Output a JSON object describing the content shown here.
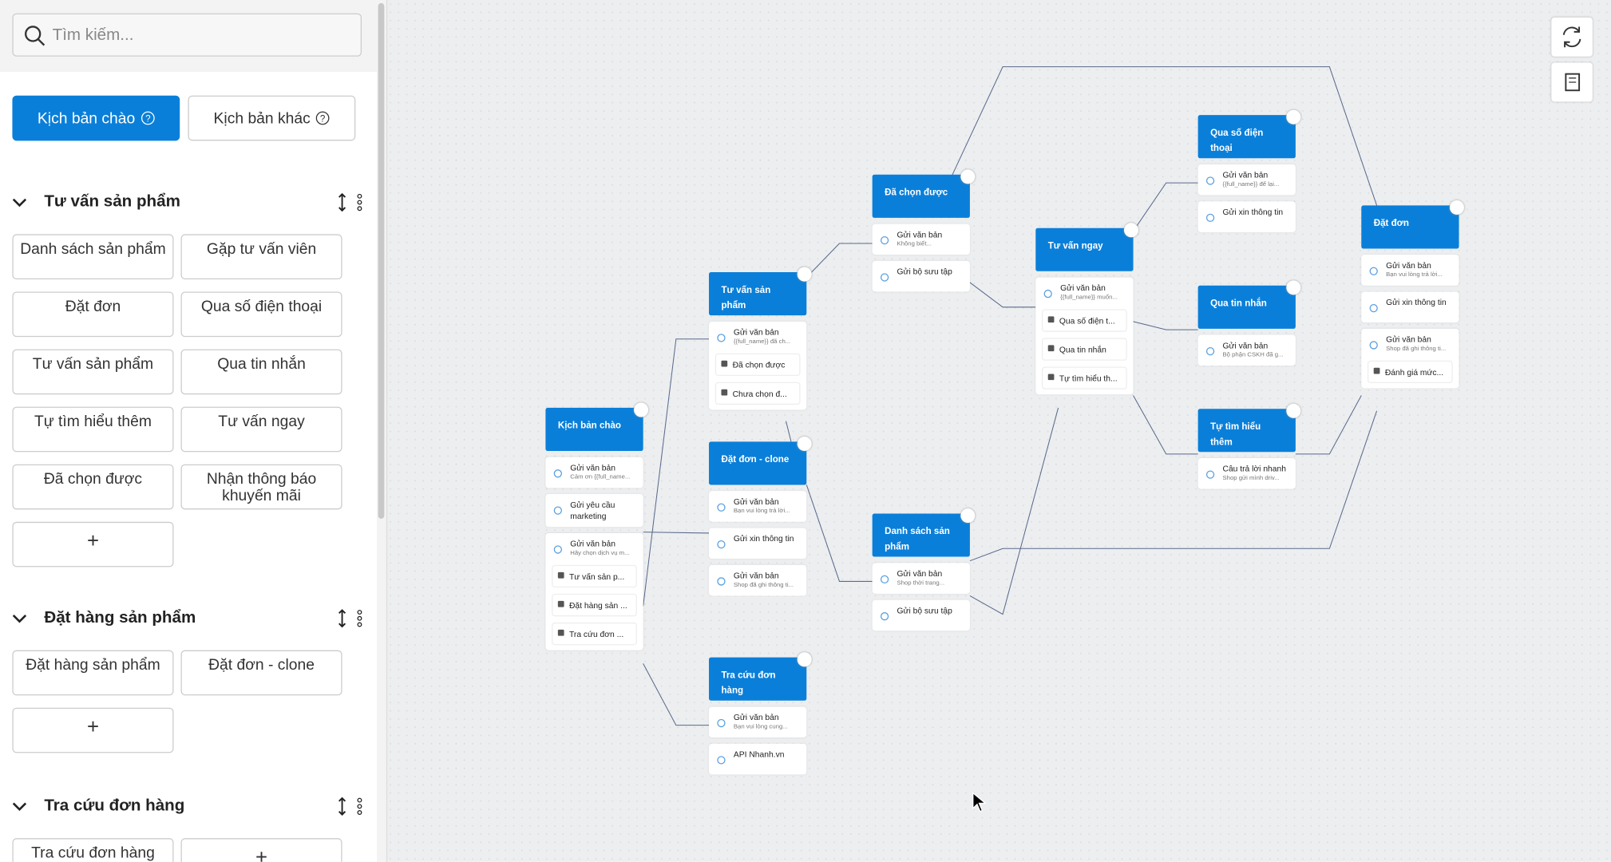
{
  "search": {
    "placeholder": "Tìm kiếm..."
  },
  "tabs": [
    "Kịch bản chào",
    "Kịch bản khác"
  ],
  "add_label": "+",
  "groups": [
    {
      "title": "Tư vấn sản phẩm",
      "items": [
        "Danh sách sản phẩm",
        "Gặp tư vấn viên",
        "Đặt đơn",
        "Qua số điện thoại",
        "Tư vấn sản phẩm",
        "Qua tin nhắn",
        "Tự tìm hiểu thêm",
        "Tư vấn ngay",
        "Đã chọn được",
        "Nhận thông báo khuyến mãi"
      ]
    },
    {
      "title": "Đặt hàng sản phẩm",
      "items": [
        "Đặt hàng sản phẩm",
        "Đặt đơn - clone"
      ]
    },
    {
      "title": "Tra cứu đơn hàng",
      "items": [
        "Tra cứu đơn hàng"
      ]
    }
  ],
  "nodes": [
    {
      "title": "Kịch bản chào",
      "items": [
        {
          "label": "Gửi văn bản",
          "sub": "Cảm ơn {{full_name..."
        },
        {
          "label": "Gửi yêu cầu marketing"
        },
        {
          "label": "Gửi văn bản",
          "sub": "Hãy chọn dịch vụ m...",
          "buttons": [
            "Tư vấn sản p...",
            "Đặt hàng sản ...",
            "Tra cứu đơn ..."
          ]
        }
      ]
    },
    {
      "title": "Tư vấn sản phẩm",
      "items": [
        {
          "label": "Gửi văn bản",
          "sub": "{{full_name}} đã ch...",
          "buttons": [
            "Đã chọn được",
            "Chưa chọn đ..."
          ]
        }
      ]
    },
    {
      "title": "Đặt đơn - clone",
      "items": [
        {
          "label": "Gửi văn bản",
          "sub": "Bạn vui lòng trả lời..."
        },
        {
          "label": "Gửi xin thông tin"
        },
        {
          "label": "Gửi văn bản",
          "sub": "Shop đã ghi thông ti..."
        }
      ]
    },
    {
      "title": "Tra cứu đơn hàng",
      "items": [
        {
          "label": "Gửi văn bản",
          "sub": "Bạn vui lòng cung..."
        },
        {
          "label": "API Nhanh.vn"
        }
      ]
    },
    {
      "title": "Đã chọn được",
      "items": [
        {
          "label": "Gửi văn bản",
          "sub": "Không biết..."
        },
        {
          "label": "Gửi bộ sưu tập"
        }
      ]
    },
    {
      "title": "Danh sách sản phẩm",
      "items": [
        {
          "label": "Gửi văn bản",
          "sub": "Shop thời trang..."
        },
        {
          "label": "Gửi bộ sưu tập"
        }
      ]
    },
    {
      "title": "Tư vấn ngay",
      "items": [
        {
          "label": "Gửi văn bản",
          "sub": "{{full_name}} muốn...",
          "buttons": [
            "Qua số điện t...",
            "Qua tin nhắn",
            "Tự tìm hiểu th..."
          ]
        }
      ]
    },
    {
      "title": "Qua số điện thoại",
      "items": [
        {
          "label": "Gửi văn bản",
          "sub": "{{full_name}} để lại..."
        },
        {
          "label": "Gửi xin thông tin"
        }
      ]
    },
    {
      "title": "Qua tin nhắn",
      "items": [
        {
          "label": "Gửi văn bản",
          "sub": "Bộ phận CSKH đã g..."
        }
      ]
    },
    {
      "title": "Tự tìm hiểu thêm",
      "items": [
        {
          "label": "Câu trả lời nhanh",
          "sub": "Shop gửi mình driv..."
        }
      ]
    },
    {
      "title": "Đặt đơn",
      "items": [
        {
          "label": "Gửi văn bản",
          "sub": "Bạn vui lòng trả lời..."
        },
        {
          "label": "Gửi xin thông tin"
        },
        {
          "label": "Gửi văn bản",
          "sub": "Shop đã ghi thông ti...",
          "buttons": [
            "Đánh giá mức..."
          ]
        }
      ]
    }
  ]
}
